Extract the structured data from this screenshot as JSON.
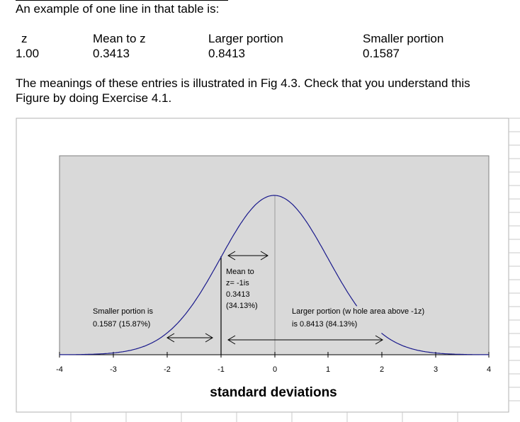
{
  "intro_text": "An example of one line in that table is:",
  "table": {
    "headers": [
      "z",
      "Mean to z",
      "Larger portion",
      "Smaller portion"
    ],
    "row": [
      "1.00",
      "0.3413",
      "0.8413",
      "0.1587"
    ]
  },
  "paragraph_line1": "The meanings of these entries is illustrated in Fig 4.3. Check that you understand this",
  "paragraph_line2": "Figure by doing Exercise 4.1.",
  "figure": {
    "ticks": [
      "-4",
      "-3",
      "-2",
      "-1",
      "0",
      "1",
      "2",
      "3",
      "4"
    ],
    "xlabel": "standard deviations",
    "annotations": {
      "smaller_1": "Smaller portion is",
      "smaller_2": "0.1587 (15.87%)",
      "mean_1": "Mean to",
      "mean_2": "z= -1is",
      "mean_3": "0.3413",
      "mean_4": "(34.13%)",
      "larger_1": "Larger portion (w hole area above -1z)",
      "larger_2": "is 0.8413 (84.13%)"
    },
    "colors": {
      "plot_bg": "#d9d9d9",
      "curve": "#1a1a8c"
    }
  }
}
